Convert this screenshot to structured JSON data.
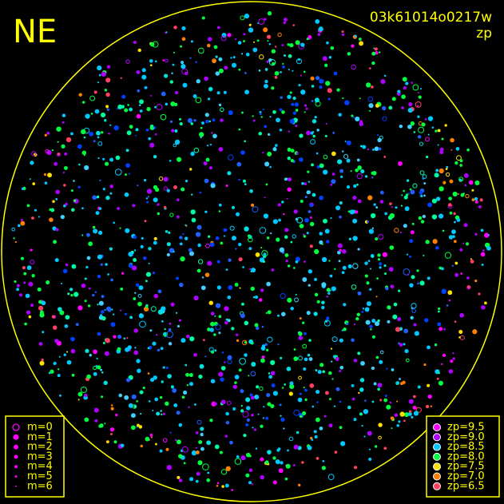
{
  "header": {
    "direction": "NE",
    "frame_id": "03k61014o0217w",
    "mode": "zp"
  },
  "magnitude_legend": {
    "color": "#ff00ff",
    "items": [
      "m=0",
      "m=1",
      "m=2",
      "m=3",
      "m=4",
      "m=5",
      "m=6"
    ]
  },
  "zp_legend": {
    "items": [
      {
        "label": "zp=9.5",
        "color": "#ff00ff"
      },
      {
        "label": "zp=9.0",
        "color": "#b000ff"
      },
      {
        "label": "zp=8.5",
        "color": "#00c8ff"
      },
      {
        "label": "zp=8.0",
        "color": "#00ff40"
      },
      {
        "label": "zp=7.5",
        "color": "#ffe000"
      },
      {
        "label": "zp=7.0",
        "color": "#ff8000"
      },
      {
        "label": "zp=6.5",
        "color": "#ff4060"
      }
    ]
  }
}
